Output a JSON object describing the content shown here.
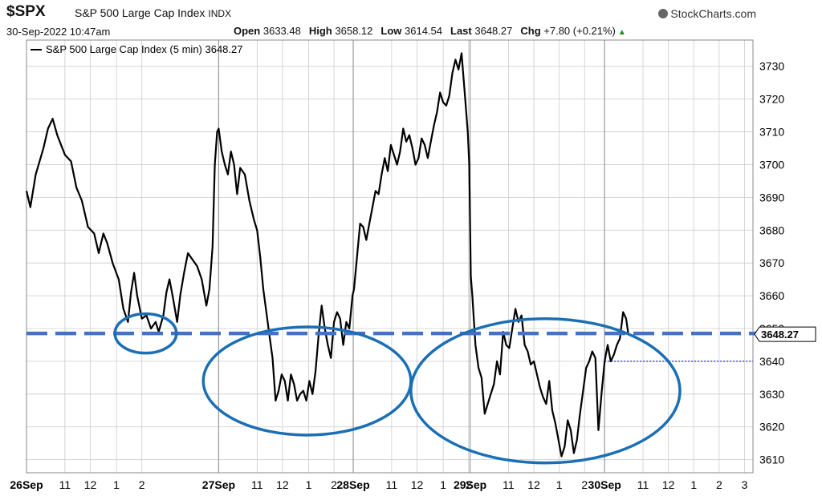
{
  "header": {
    "ticker": "$SPX",
    "name": "S&P 500 Large Cap Index",
    "exchange": "INDX",
    "credit": "StockCharts.com",
    "timestamp": "30-Sep-2022 10:47am",
    "open_label": "Open",
    "open": "3633.48",
    "high_label": "High",
    "high": "3658.12",
    "low_label": "Low",
    "low": "3614.54",
    "last_label": "Last",
    "last": "3648.27",
    "chg_label": "Chg",
    "chg": "+7.80 (+0.21%)"
  },
  "colors": {
    "price_line": "#000000",
    "support_line": "#4472c4",
    "circle": "#1a6fb5",
    "grid": "#cccccc",
    "dotted": "#1a1aff"
  },
  "chart_data": {
    "type": "line",
    "series": [
      {
        "name": "S&P 500 Large Cap Index (5 min) 3648.27",
        "points": [
          [
            0,
            3692
          ],
          [
            0.05,
            3687
          ],
          [
            0.12,
            3697
          ],
          [
            0.22,
            3705
          ],
          [
            0.28,
            3711
          ],
          [
            0.34,
            3714
          ],
          [
            0.4,
            3709
          ],
          [
            0.5,
            3703
          ],
          [
            0.58,
            3701
          ],
          [
            0.65,
            3693
          ],
          [
            0.72,
            3689
          ],
          [
            0.8,
            3681
          ],
          [
            0.88,
            3679
          ],
          [
            0.94,
            3673
          ],
          [
            1.0,
            3679
          ],
          [
            1.05,
            3676
          ],
          [
            1.12,
            3670
          ],
          [
            1.2,
            3665
          ],
          [
            1.26,
            3656
          ],
          [
            1.32,
            3652
          ],
          [
            1.36,
            3661
          ],
          [
            1.4,
            3667
          ],
          [
            1.44,
            3660
          ],
          [
            1.5,
            3653
          ],
          [
            1.56,
            3654
          ],
          [
            1.62,
            3650
          ],
          [
            1.68,
            3652
          ],
          [
            1.72,
            3649
          ],
          [
            1.78,
            3654
          ],
          [
            1.82,
            3661
          ],
          [
            1.86,
            3665
          ],
          [
            1.9,
            3660
          ],
          [
            1.96,
            3652
          ],
          [
            2.0,
            3660
          ],
          [
            2.05,
            3667
          ],
          [
            2.1,
            3673
          ],
          [
            2.16,
            3671
          ],
          [
            2.22,
            3669
          ],
          [
            2.28,
            3665
          ],
          [
            2.34,
            3657
          ],
          [
            2.38,
            3662
          ],
          [
            2.42,
            3675
          ],
          [
            2.45,
            3700
          ],
          [
            2.48,
            3710
          ],
          [
            2.5,
            3711
          ],
          [
            2.54,
            3704
          ],
          [
            2.58,
            3700
          ],
          [
            2.62,
            3697
          ],
          [
            2.66,
            3704
          ],
          [
            2.7,
            3700
          ],
          [
            2.74,
            3691
          ],
          [
            2.78,
            3699
          ],
          [
            2.84,
            3697
          ],
          [
            2.9,
            3689
          ],
          [
            2.96,
            3683
          ],
          [
            3.0,
            3680
          ],
          [
            3.04,
            3672
          ],
          [
            3.08,
            3662
          ],
          [
            3.12,
            3655
          ],
          [
            3.16,
            3648
          ],
          [
            3.2,
            3641
          ],
          [
            3.24,
            3628
          ],
          [
            3.28,
            3631
          ],
          [
            3.32,
            3636
          ],
          [
            3.36,
            3634
          ],
          [
            3.4,
            3628
          ],
          [
            3.44,
            3636
          ],
          [
            3.48,
            3633
          ],
          [
            3.52,
            3628
          ],
          [
            3.56,
            3630
          ],
          [
            3.6,
            3631
          ],
          [
            3.64,
            3628
          ],
          [
            3.68,
            3634
          ],
          [
            3.72,
            3630
          ],
          [
            3.76,
            3637
          ],
          [
            3.8,
            3648
          ],
          [
            3.84,
            3657
          ],
          [
            3.88,
            3650
          ],
          [
            3.92,
            3645
          ],
          [
            3.96,
            3641
          ],
          [
            4.0,
            3652
          ],
          [
            4.04,
            3655
          ],
          [
            4.08,
            3653
          ],
          [
            4.12,
            3645
          ],
          [
            4.16,
            3652
          ],
          [
            4.2,
            3650
          ],
          [
            4.24,
            3660
          ],
          [
            4.26,
            3662
          ],
          [
            4.3,
            3672
          ],
          [
            4.34,
            3682
          ],
          [
            4.38,
            3681
          ],
          [
            4.42,
            3677
          ],
          [
            4.46,
            3682
          ],
          [
            4.5,
            3687
          ],
          [
            4.54,
            3692
          ],
          [
            4.58,
            3691
          ],
          [
            4.62,
            3697
          ],
          [
            4.66,
            3702
          ],
          [
            4.7,
            3698
          ],
          [
            4.74,
            3706
          ],
          [
            4.78,
            3703
          ],
          [
            4.82,
            3700
          ],
          [
            4.86,
            3704
          ],
          [
            4.9,
            3711
          ],
          [
            4.94,
            3707
          ],
          [
            4.98,
            3709
          ],
          [
            5.02,
            3705
          ],
          [
            5.06,
            3700
          ],
          [
            5.1,
            3702
          ],
          [
            5.14,
            3708
          ],
          [
            5.18,
            3706
          ],
          [
            5.22,
            3702
          ],
          [
            5.26,
            3707
          ],
          [
            5.3,
            3712
          ],
          [
            5.34,
            3716
          ],
          [
            5.38,
            3722
          ],
          [
            5.42,
            3719
          ],
          [
            5.46,
            3718
          ],
          [
            5.5,
            3721
          ],
          [
            5.54,
            3728
          ],
          [
            5.58,
            3732
          ],
          [
            5.62,
            3729
          ],
          [
            5.66,
            3734
          ],
          [
            5.7,
            3722
          ],
          [
            5.74,
            3710
          ],
          [
            5.76,
            3700
          ],
          [
            5.77,
            3682
          ],
          [
            5.78,
            3666
          ],
          [
            5.8,
            3660
          ],
          [
            5.84,
            3645
          ],
          [
            5.88,
            3638
          ],
          [
            5.92,
            3635
          ],
          [
            5.96,
            3624
          ],
          [
            6.0,
            3627
          ],
          [
            6.04,
            3630
          ],
          [
            6.08,
            3633
          ],
          [
            6.12,
            3640
          ],
          [
            6.16,
            3636
          ],
          [
            6.2,
            3649
          ],
          [
            6.24,
            3645
          ],
          [
            6.28,
            3644
          ],
          [
            6.32,
            3650
          ],
          [
            6.36,
            3656
          ],
          [
            6.4,
            3652
          ],
          [
            6.44,
            3654
          ],
          [
            6.48,
            3645
          ],
          [
            6.52,
            3643
          ],
          [
            6.56,
            3639
          ],
          [
            6.6,
            3640
          ],
          [
            6.64,
            3636
          ],
          [
            6.68,
            3632
          ],
          [
            6.72,
            3629
          ],
          [
            6.76,
            3627
          ],
          [
            6.8,
            3634
          ],
          [
            6.84,
            3625
          ],
          [
            6.88,
            3621
          ],
          [
            6.92,
            3616
          ],
          [
            6.96,
            3611
          ],
          [
            7.0,
            3614
          ],
          [
            7.04,
            3622
          ],
          [
            7.08,
            3619
          ],
          [
            7.12,
            3612
          ],
          [
            7.16,
            3616
          ],
          [
            7.2,
            3624
          ],
          [
            7.24,
            3631
          ],
          [
            7.28,
            3638
          ],
          [
            7.32,
            3640
          ],
          [
            7.36,
            3643
          ],
          [
            7.4,
            3641
          ],
          [
            7.44,
            3619
          ],
          [
            7.48,
            3630
          ],
          [
            7.52,
            3640
          ],
          [
            7.56,
            3645
          ],
          [
            7.6,
            3640
          ],
          [
            7.64,
            3642
          ],
          [
            7.68,
            3645
          ],
          [
            7.72,
            3647
          ],
          [
            7.76,
            3655
          ],
          [
            7.8,
            3653
          ],
          [
            7.83,
            3648
          ]
        ]
      }
    ],
    "x_tick_labels": [
      {
        "x": 0,
        "label": "26Sep",
        "major": true
      },
      {
        "x": 0.5,
        "label": "11"
      },
      {
        "x": 0.83,
        "label": "12"
      },
      {
        "x": 1.17,
        "label": "1"
      },
      {
        "x": 1.5,
        "label": "2"
      },
      {
        "x": 2.5,
        "label": "27Sep",
        "major": true
      },
      {
        "x": 3.0,
        "label": "11"
      },
      {
        "x": 3.33,
        "label": "12"
      },
      {
        "x": 3.67,
        "label": "1"
      },
      {
        "x": 4.0,
        "label": "2"
      },
      {
        "x": 4.25,
        "label": "28Sep",
        "major": true
      },
      {
        "x": 4.75,
        "label": "11"
      },
      {
        "x": 5.08,
        "label": "12"
      },
      {
        "x": 5.42,
        "label": "1"
      },
      {
        "x": 5.75,
        "label": "2"
      },
      {
        "x": 5.77,
        "label": "29Sep",
        "major": true
      },
      {
        "x": 6.27,
        "label": "11"
      },
      {
        "x": 6.6,
        "label": "12"
      },
      {
        "x": 6.93,
        "label": "1"
      },
      {
        "x": 7.26,
        "label": "2"
      },
      {
        "x": 7.52,
        "label": "30Sep",
        "major": true
      },
      {
        "x": 8.02,
        "label": "11"
      },
      {
        "x": 8.35,
        "label": "12"
      },
      {
        "x": 8.68,
        "label": "1"
      },
      {
        "x": 9.01,
        "label": "2"
      },
      {
        "x": 9.34,
        "label": "3"
      }
    ],
    "y_ticks": [
      3610,
      3620,
      3630,
      3640,
      3650,
      3660,
      3670,
      3680,
      3690,
      3700,
      3710,
      3720,
      3730
    ],
    "y_tick_labels": [
      "3610",
      "3620",
      "3630",
      "3640",
      "3650",
      "3660",
      "3670",
      "3680",
      "3690",
      "3700",
      "3710",
      "3720",
      "3730"
    ],
    "ylim": [
      3606,
      3738
    ],
    "xlim": [
      0,
      9.45
    ],
    "day_separators": [
      2.5,
      4.25,
      5.77,
      7.52
    ],
    "last_value": 3648.27,
    "last_value_label": "3648.27",
    "support_level": 3648.5,
    "dotted_level": 3640,
    "dotted_from_x": 7.52,
    "grid": true,
    "legend": "top-left",
    "annotations": [
      {
        "type": "ellipse",
        "cx": 1.55,
        "cy": 3648.5,
        "rx": 0.4,
        "ry": 6
      },
      {
        "type": "ellipse",
        "cx": 3.65,
        "cy": 3634,
        "rx": 1.35,
        "ry": 16.5
      },
      {
        "type": "ellipse",
        "cx": 6.75,
        "cy": 3631,
        "rx": 1.75,
        "ry": 22
      }
    ]
  }
}
